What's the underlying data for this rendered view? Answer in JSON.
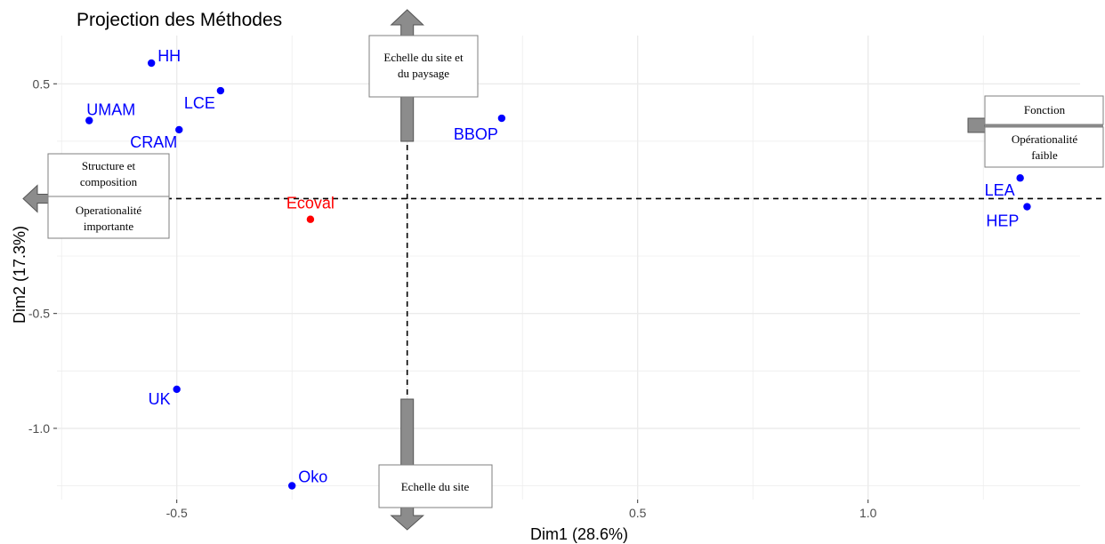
{
  "chart_data": {
    "type": "scatter",
    "title": "Projection des Méthodes",
    "xlabel": "Dim1 (28.6%)",
    "ylabel": "Dim2 (17.3%)",
    "xlim": [
      -0.76,
      1.46
    ],
    "ylim": [
      -1.31,
      0.71
    ],
    "x_ticks": [
      -0.5,
      0.5,
      1.0
    ],
    "y_ticks": [
      0.5,
      -0.5,
      -1.0
    ],
    "x_tick_labels": [
      "-0.5",
      "0.5",
      "1.0"
    ],
    "y_tick_labels": [
      "0.5",
      "-0.5",
      "-1.0"
    ],
    "grid": true,
    "reference_lines": {
      "x": 0,
      "y": 0
    },
    "points": [
      {
        "label": "HH",
        "x": -0.555,
        "y": 0.59,
        "color": "#0000ff",
        "anchor": "start",
        "dx": 7,
        "dy": -2
      },
      {
        "label": "UMAM",
        "x": -0.69,
        "y": 0.34,
        "color": "#0000ff",
        "anchor": "start",
        "dx": -3,
        "dy": -6
      },
      {
        "label": "LCE",
        "x": -0.405,
        "y": 0.47,
        "color": "#0000ff",
        "anchor": "end",
        "dx": -6,
        "dy": 20
      },
      {
        "label": "CRAM",
        "x": -0.495,
        "y": 0.3,
        "color": "#0000ff",
        "anchor": "end",
        "dx": -2,
        "dy": 20
      },
      {
        "label": "BBOP",
        "x": 0.205,
        "y": 0.35,
        "color": "#0000ff",
        "anchor": "end",
        "dx": -4,
        "dy": 24
      },
      {
        "label": "Ecoval",
        "x": -0.21,
        "y": -0.09,
        "color": "#ff0000",
        "anchor": "middle",
        "dx": 0,
        "dy": -12
      },
      {
        "label": "LEA",
        "x": 1.33,
        "y": 0.09,
        "color": "#0000ff",
        "anchor": "end",
        "dx": -6,
        "dy": 20
      },
      {
        "label": "HEP",
        "x": 1.345,
        "y": -0.035,
        "color": "#0000ff",
        "anchor": "end",
        "dx": -9,
        "dy": 22
      },
      {
        "label": "UK",
        "x": -0.5,
        "y": -0.83,
        "color": "#0000ff",
        "anchor": "end",
        "dx": -7,
        "dy": 17
      },
      {
        "label": "Oko",
        "x": -0.25,
        "y": -1.25,
        "color": "#0000ff",
        "anchor": "start",
        "dx": 7,
        "dy": -4
      }
    ]
  },
  "annotations": {
    "top": [
      "Echelle du site et",
      "du paysage"
    ],
    "bottom": [
      "Echelle du site"
    ],
    "left_upper": [
      "Structure et",
      "composition"
    ],
    "left_lower": [
      "Operationalité",
      "importante"
    ],
    "right_upper": [
      "Fonction"
    ],
    "right_lower": [
      "Opérationalité",
      "faible"
    ]
  },
  "colors": {
    "point_default": "#0000ff",
    "point_highlight": "#ff0000",
    "arrow_fill": "#8c8c8c",
    "grid": "#ebebeb"
  }
}
